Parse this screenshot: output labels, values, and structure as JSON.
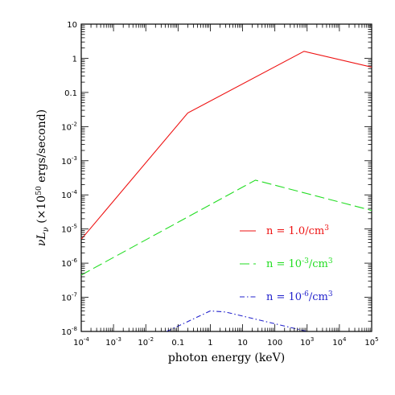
{
  "chart_data": {
    "type": "line",
    "x_scale": "log",
    "y_scale": "log",
    "xlim": [
      0.0001,
      100000
    ],
    "ylim": [
      1e-08,
      10
    ],
    "xlabel": "photon energy (keV)",
    "ylabel_parts": {
      "main": "νL",
      "sub": "ν",
      "paren_open": " (×10",
      "sup": "50",
      "rest": " ergs/second)"
    },
    "x_ticks": [
      {
        "value": 0.0001,
        "base": "10",
        "exp": "-4"
      },
      {
        "value": 0.001,
        "base": "10",
        "exp": "-3"
      },
      {
        "value": 0.01,
        "base": "10",
        "exp": "-2"
      },
      {
        "value": 0.1,
        "base": "0.1",
        "exp": ""
      },
      {
        "value": 1,
        "base": "1",
        "exp": ""
      },
      {
        "value": 10,
        "base": "10",
        "exp": ""
      },
      {
        "value": 100,
        "base": "100",
        "exp": ""
      },
      {
        "value": 1000,
        "base": "10",
        "exp": "3"
      },
      {
        "value": 10000,
        "base": "10",
        "exp": "4"
      },
      {
        "value": 100000,
        "base": "10",
        "exp": "5"
      }
    ],
    "y_ticks": [
      {
        "value": 1e-08,
        "base": "10",
        "exp": "-8"
      },
      {
        "value": 1e-07,
        "base": "10",
        "exp": "-7"
      },
      {
        "value": 1e-06,
        "base": "10",
        "exp": "-6"
      },
      {
        "value": 1e-05,
        "base": "10",
        "exp": "-5"
      },
      {
        "value": 0.0001,
        "base": "10",
        "exp": "-4"
      },
      {
        "value": 0.001,
        "base": "10",
        "exp": "-3"
      },
      {
        "value": 0.01,
        "base": "10",
        "exp": "-2"
      },
      {
        "value": 0.1,
        "base": "0.1",
        "exp": ""
      },
      {
        "value": 1,
        "base": "1",
        "exp": ""
      },
      {
        "value": 10,
        "base": "10",
        "exp": ""
      }
    ],
    "series": [
      {
        "legend_prefix": "n = ",
        "legend_value": "1.0",
        "legend_value_exp": "",
        "legend_unit": "/cm",
        "legend_unit_exp": "3",
        "color": "#ee1111",
        "dash": "",
        "points": [
          [
            0.0001,
            5e-06
          ],
          [
            0.2,
            0.025
          ],
          [
            800,
            1.6
          ],
          [
            100000,
            0.55
          ]
        ]
      },
      {
        "legend_prefix": "n = ",
        "legend_value": "10",
        "legend_value_exp": "-3",
        "legend_unit": "/cm",
        "legend_unit_exp": "3",
        "color": "#22dd22",
        "dash": "12,5",
        "points": [
          [
            0.0001,
            4.5e-07
          ],
          [
            25,
            0.00027
          ],
          [
            100000,
            3.5e-05
          ]
        ]
      },
      {
        "legend_prefix": "n = ",
        "legend_value": "10",
        "legend_value_exp": "-6",
        "legend_unit": "/cm",
        "legend_unit_exp": "3",
        "color": "#2222cc",
        "dash": "6,3,1.5,3",
        "points": [
          [
            0.045,
            1e-08
          ],
          [
            1,
            4e-08
          ],
          [
            3,
            3.7e-08
          ],
          [
            1000,
            1e-08
          ]
        ]
      }
    ],
    "legend_position": "lower-right"
  }
}
